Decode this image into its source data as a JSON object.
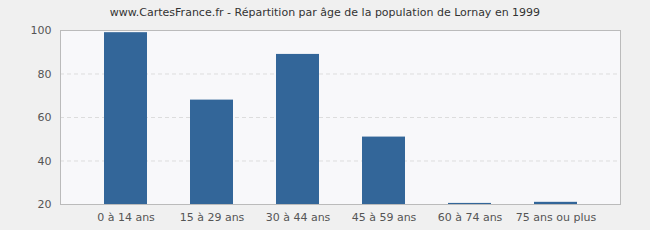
{
  "chart_data": {
    "type": "bar",
    "title": "www.CartesFrance.fr - Répartition par âge de la population de Lornay en 1999",
    "categories": [
      "0 à 14 ans",
      "15 à 29 ans",
      "30 à 44 ans",
      "45 à 59 ans",
      "60 à 74 ans",
      "75 ans ou plus"
    ],
    "values": [
      99,
      68,
      89,
      51,
      20.5,
      21
    ],
    "color": "#336699",
    "ylim": [
      20,
      100
    ],
    "yticks": [
      20,
      40,
      60,
      80,
      100
    ],
    "grid": true
  }
}
